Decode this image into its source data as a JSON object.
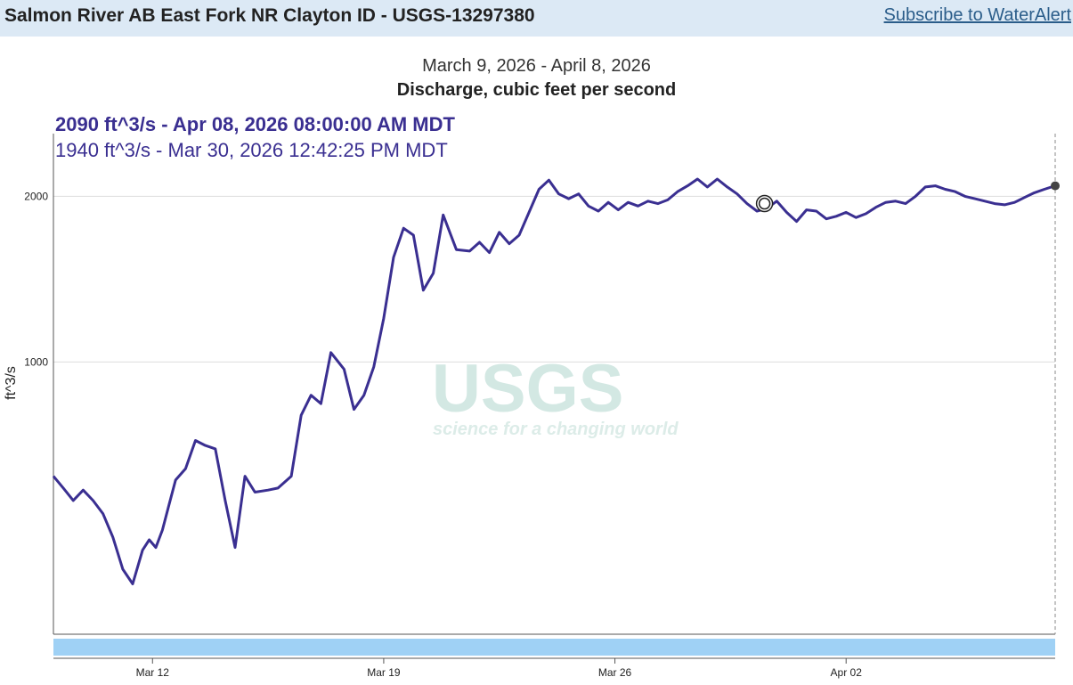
{
  "header": {
    "site_title": "Salmon River AB East Fork NR Clayton ID - USGS-13297380",
    "subscribe_link": "Subscribe to WaterAlert"
  },
  "watermark": {
    "logo_text": "USGS",
    "tagline": "science for a changing world"
  },
  "tooltip": {
    "current": "2090 ft^3/s - Apr 08, 2026 08:00:00 AM MDT",
    "cursor": "1940 ft^3/s - Mar 30, 2026 12:42:25 PM MDT"
  },
  "colors": {
    "series": "#3a2f91",
    "brush": "#9fd1f5",
    "header_bg": "#dce9f5",
    "link": "#2b5d8a"
  },
  "chart_data": {
    "type": "line",
    "title": "March 9, 2026 - April 8, 2026",
    "subtitle": "Discharge, cubic feet per second",
    "ylabel": "ft^3/s",
    "xlabel": "",
    "y_scale": "log",
    "ylim": [
      320,
      2600
    ],
    "y_ticks": [
      1000,
      2000
    ],
    "x_range": [
      "Mar 9 00:00",
      "Apr 8 08:00"
    ],
    "x_ticks": [
      "Mar 12",
      "Mar 19",
      "Mar 26",
      "Apr 02"
    ],
    "grid": "horizontal",
    "legend": "none",
    "series": [
      {
        "x_unit": "days since Mar 9 00:00",
        "x": [
          0,
          0.3,
          0.6,
          0.9,
          1.2,
          1.5,
          1.8,
          2.1,
          2.4,
          2.7,
          2.9,
          3.1,
          3.3,
          3.5,
          3.7,
          4.0,
          4.3,
          4.6,
          4.9,
          5.2,
          5.5,
          5.8,
          6.1,
          6.5,
          6.8,
          7.2,
          7.5,
          7.8,
          8.1,
          8.4,
          8.8,
          9.1,
          9.4,
          9.7,
          10.0,
          10.3,
          10.6,
          10.9,
          11.2,
          11.5,
          11.8,
          12.2,
          12.6,
          12.9,
          13.2,
          13.5,
          13.8,
          14.1,
          14.4,
          14.7,
          15.0,
          15.3,
          15.6,
          15.9,
          16.2,
          16.5,
          16.8,
          17.1,
          17.4,
          17.7,
          18.0,
          18.3,
          18.6,
          18.9,
          19.2,
          19.5,
          19.8,
          20.1,
          20.4,
          20.7,
          21.0,
          21.3,
          21.6,
          21.9,
          22.2,
          22.5,
          22.8,
          23.1,
          23.4,
          23.7,
          24.0,
          24.3,
          24.6,
          24.9,
          25.2,
          25.5,
          25.8,
          26.1,
          26.4,
          26.7,
          27.0,
          27.3,
          27.6,
          27.9,
          28.2,
          28.5,
          28.8,
          29.1,
          29.4,
          29.7,
          30.0,
          30.33
        ],
        "y": [
          620,
          590,
          560,
          585,
          560,
          530,
          480,
          420,
          395,
          455,
          475,
          460,
          495,
          550,
          610,
          640,
          720,
          705,
          695,
          560,
          460,
          620,
          580,
          585,
          590,
          620,
          800,
          870,
          840,
          1040,
          970,
          820,
          870,
          980,
          1200,
          1550,
          1750,
          1700,
          1350,
          1450,
          1850,
          1600,
          1590,
          1650,
          1580,
          1720,
          1640,
          1700,
          1870,
          2060,
          2140,
          2020,
          1980,
          2020,
          1920,
          1880,
          1950,
          1890,
          1950,
          1920,
          1960,
          1940,
          1970,
          2040,
          2090,
          2150,
          2080,
          2150,
          2080,
          2020,
          1940,
          1880,
          1900,
          1960,
          1870,
          1800,
          1890,
          1880,
          1820,
          1840,
          1870,
          1830,
          1860,
          1910,
          1950,
          1960,
          1940,
          2000,
          2080,
          2090,
          2060,
          2040,
          2000,
          1980,
          1960,
          1940,
          1930,
          1950,
          1990,
          2030,
          2060,
          2090
        ]
      }
    ],
    "markers": [
      {
        "label": "current",
        "x": 30.33,
        "y": 2090
      },
      {
        "label": "cursor",
        "x": 21.53,
        "y": 1940
      }
    ]
  }
}
